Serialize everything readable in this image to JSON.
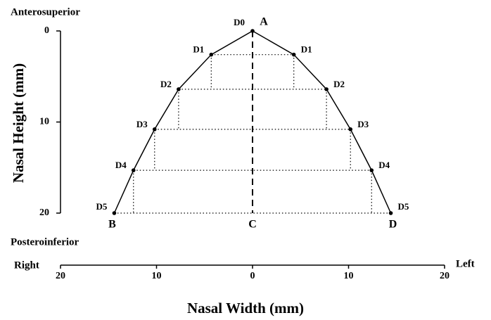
{
  "chart_data": {
    "type": "line",
    "y_title": "Nasal Height (mm)",
    "x_title": "Nasal Width (mm)",
    "y_top_label": "Anterosuperior",
    "y_bottom_label": "Posteroinferior",
    "x_left_label": "Right",
    "x_right_label": "Left",
    "x": [
      -14.4,
      -12.4,
      -10.2,
      -7.7,
      -4.3,
      0,
      4.3,
      7.7,
      10.2,
      12.4,
      14.4
    ],
    "values": [
      20,
      15.3,
      10.8,
      6.4,
      2.6,
      0,
      2.6,
      6.4,
      10.8,
      15.3,
      20
    ],
    "point_labels": [
      "D5",
      "D4",
      "D3",
      "D2",
      "D1",
      "D0",
      "D1",
      "D2",
      "D3",
      "D4",
      "D5"
    ],
    "annotations": [
      "A",
      "B",
      "C",
      "D"
    ],
    "xlim": [
      -20,
      20
    ],
    "xticks": [
      {
        "value": -20,
        "label": "20"
      },
      {
        "value": -10,
        "label": "10"
      },
      0,
      10,
      20
    ],
    "ylim": [
      0,
      20
    ],
    "yticks": [
      0,
      10,
      20
    ],
    "y_inverted": true,
    "color": "#000000"
  }
}
